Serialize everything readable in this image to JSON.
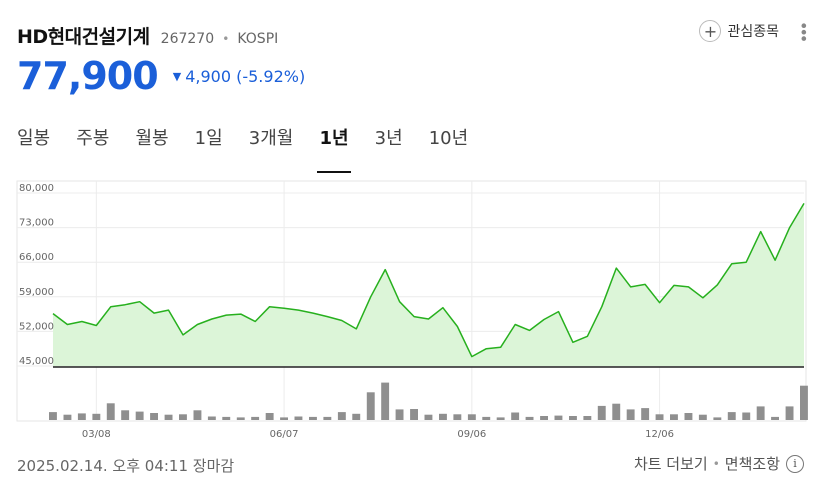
{
  "stock": {
    "name": "HD현대건설기계",
    "code": "267270",
    "dot": "•",
    "market": "KOSPI",
    "watch_label": "관심종목"
  },
  "price": {
    "current": "77,900",
    "change": "4,900",
    "change_pct": "(-5.92%)",
    "direction": "down",
    "color": "#1b5fd9"
  },
  "tabs": [
    {
      "label": "일봉",
      "active": false
    },
    {
      "label": "주봉",
      "active": false
    },
    {
      "label": "월봉",
      "active": false
    },
    {
      "label": "1일",
      "active": false
    },
    {
      "label": "3개월",
      "active": false
    },
    {
      "label": "1년",
      "active": true
    },
    {
      "label": "3년",
      "active": false
    },
    {
      "label": "10년",
      "active": false
    }
  ],
  "chart_data": {
    "type": "area",
    "ylim": [
      45000,
      80000
    ],
    "yticks": [
      "80,000",
      "73,000",
      "66,000",
      "59,000",
      "52,000",
      "45,000"
    ],
    "ytick_values": [
      80000,
      73000,
      66000,
      59000,
      52000,
      45000
    ],
    "xticks": [
      "03/08",
      "06/07",
      "09/06",
      "12/06"
    ],
    "xtick_index": [
      3,
      16,
      29,
      42
    ],
    "line_color": "#27b01e",
    "fill_color": "#dcf5d8",
    "bar_color": "#8f8f8f",
    "prices": [
      55600,
      53400,
      54000,
      53200,
      57000,
      57400,
      58000,
      55700,
      56300,
      51300,
      53400,
      54500,
      55300,
      55500,
      54000,
      57000,
      56700,
      56300,
      55700,
      55000,
      54200,
      52500,
      59000,
      64500,
      58000,
      55000,
      54500,
      56800,
      53000,
      46900,
      48500,
      48800,
      53400,
      52200,
      54400,
      56000,
      49800,
      51000,
      57000,
      64800,
      61000,
      61500,
      57800,
      61300,
      61000,
      58800,
      61400,
      65700,
      66000,
      72200,
      66400,
      73000,
      77900
    ],
    "volumes": [
      0.18,
      0.12,
      0.15,
      0.14,
      0.38,
      0.22,
      0.19,
      0.16,
      0.12,
      0.13,
      0.22,
      0.08,
      0.07,
      0.06,
      0.07,
      0.16,
      0.06,
      0.08,
      0.07,
      0.07,
      0.18,
      0.14,
      0.63,
      0.85,
      0.24,
      0.25,
      0.12,
      0.14,
      0.13,
      0.13,
      0.07,
      0.06,
      0.17,
      0.07,
      0.09,
      0.1,
      0.09,
      0.09,
      0.32,
      0.37,
      0.24,
      0.27,
      0.13,
      0.13,
      0.16,
      0.12,
      0.06,
      0.18,
      0.17,
      0.31,
      0.07,
      0.31,
      0.78
    ]
  },
  "footer": {
    "datetime": "2025.02.14. 오후 04:11 장마감",
    "chart_more": "차트 더보기",
    "sep": "•",
    "disclaimer": "면책조항",
    "info_glyph": "i"
  }
}
